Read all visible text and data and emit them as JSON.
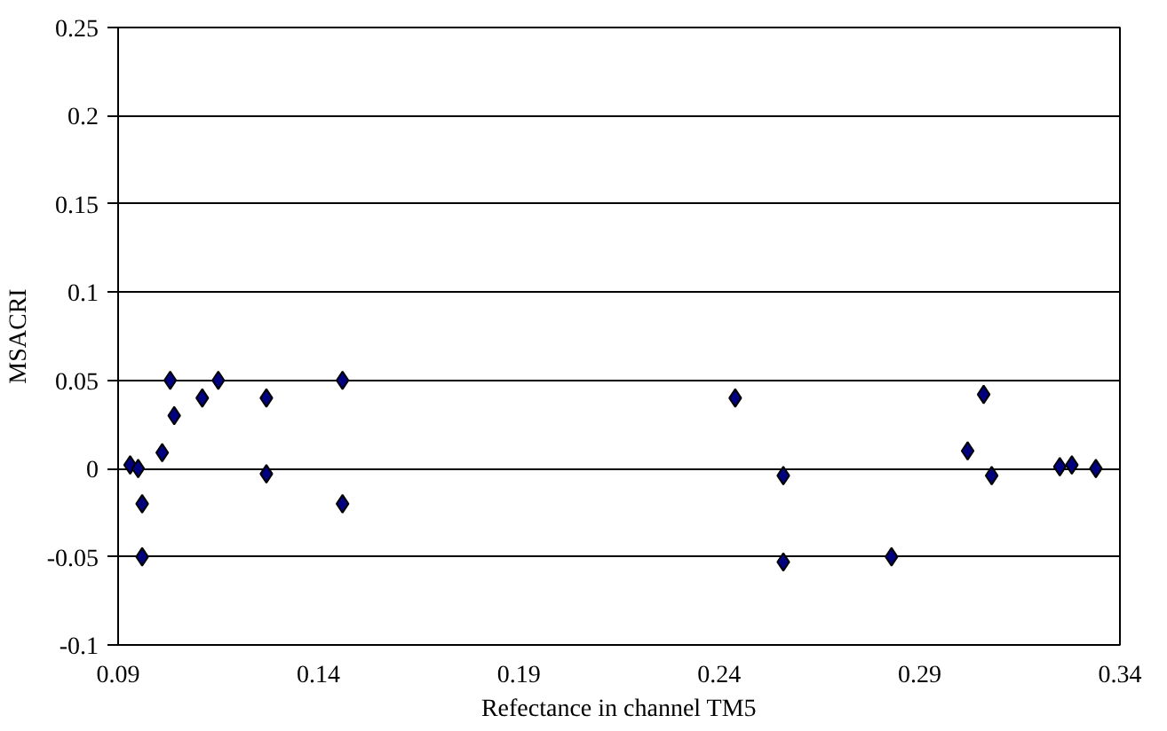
{
  "chart_data": {
    "type": "scatter",
    "xlabel": "Refectance in channel TM5",
    "ylabel": "MSACRI",
    "x": [
      0.093,
      0.095,
      0.096,
      0.096,
      0.101,
      0.103,
      0.104,
      0.111,
      0.115,
      0.127,
      0.127,
      0.146,
      0.146,
      0.244,
      0.256,
      0.256,
      0.283,
      0.302,
      0.306,
      0.308,
      0.325,
      0.328,
      0.334
    ],
    "series": [
      {
        "color": "#000080",
        "values": [
          0.002,
          0.0,
          -0.02,
          -0.05,
          0.009,
          0.05,
          0.03,
          0.04,
          0.05,
          0.04,
          -0.003,
          0.05,
          -0.02,
          0.04,
          -0.004,
          -0.053,
          -0.05,
          0.01,
          0.042,
          -0.004,
          0.001,
          0.002,
          0.0
        ]
      }
    ],
    "xlim": [
      0.09,
      0.34
    ],
    "xticks": [
      0.09,
      0.14,
      0.19,
      0.24,
      0.29,
      0.34
    ],
    "ylim": [
      -0.1,
      0.25
    ],
    "yticks": [
      -0.1,
      -0.05,
      0,
      0.05,
      0.1,
      0.15,
      0.2,
      0.25
    ],
    "grid": "y",
    "marker": "diamond"
  }
}
